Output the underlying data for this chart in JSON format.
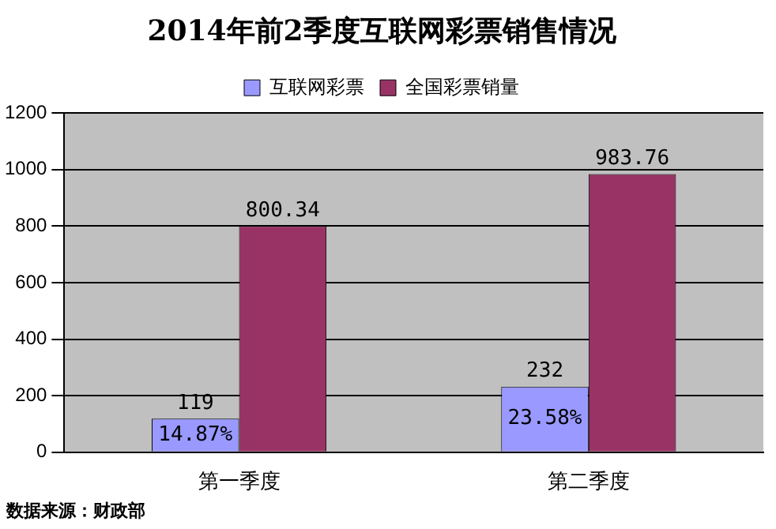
{
  "chart_data": {
    "type": "bar",
    "title": "2014年前2季度互联网彩票销售情况",
    "categories": [
      "第一季度",
      "第二季度"
    ],
    "series": [
      {
        "name": "互联网彩票",
        "color": "#9999ff",
        "values": [
          119,
          232
        ]
      },
      {
        "name": "全国彩票销量",
        "color": "#993366",
        "values": [
          800.34,
          983.76
        ]
      }
    ],
    "ylim": [
      0,
      1200
    ],
    "yticks": [
      0,
      200,
      400,
      600,
      800,
      1000,
      1200
    ],
    "grid": "y",
    "legend": "top",
    "data_labels": true,
    "annotations": [
      {
        "text": "14.87%",
        "x": "第一季度",
        "y": 60
      },
      {
        "text": "23.58%",
        "x": "第二季度",
        "y": 120
      },
      "数据来源：财政部"
    ]
  }
}
